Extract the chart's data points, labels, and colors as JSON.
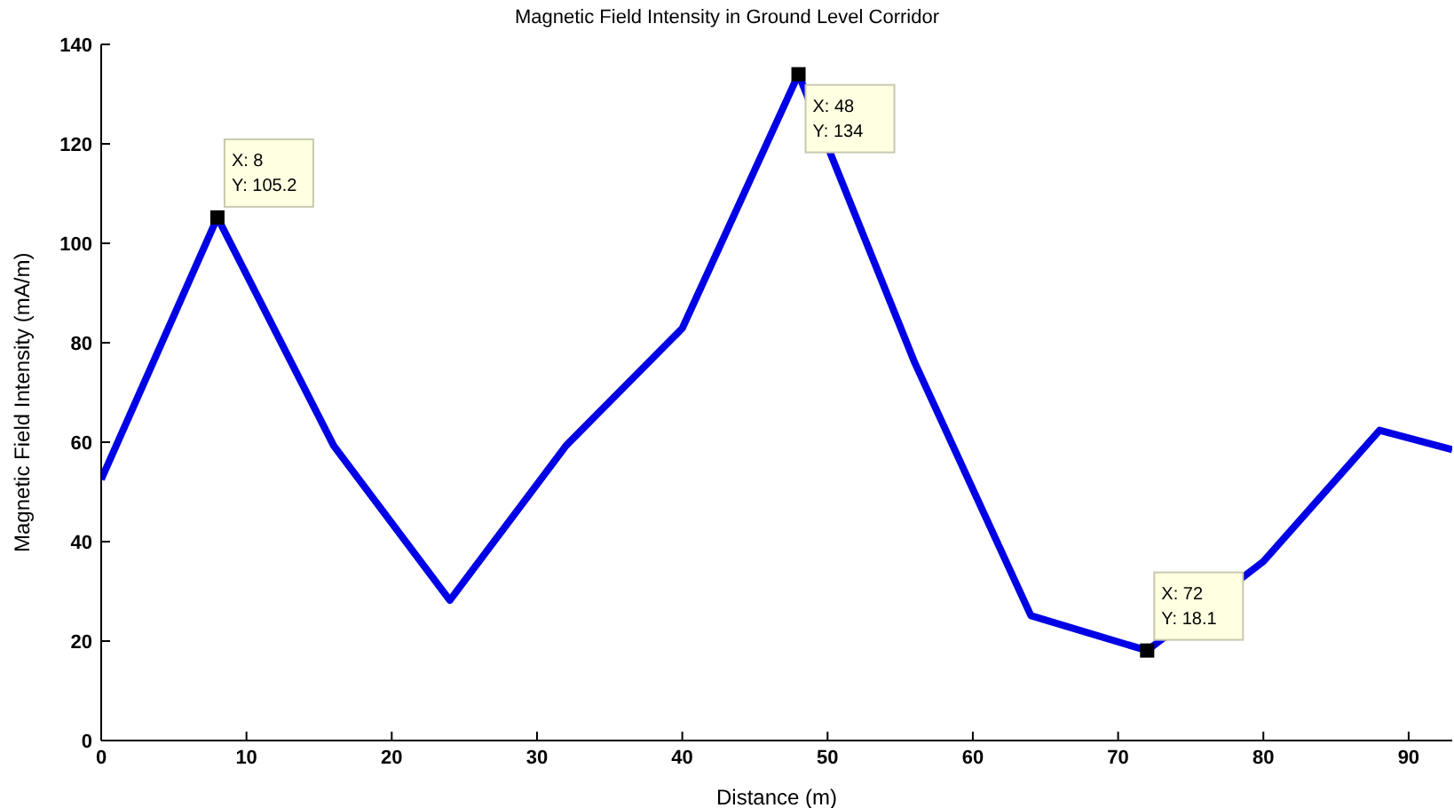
{
  "chart_data": {
    "type": "line",
    "title": "Magnetic Field Intensity in Ground Level Corridor",
    "xlabel": "Distance (m)",
    "ylabel": "Magnetic Field Intensity (mA/m)",
    "series": [
      {
        "color": "#0000e6",
        "x": [
          0,
          8,
          16,
          24,
          32,
          40,
          48,
          56,
          64,
          72,
          80,
          88,
          93
        ],
        "values": [
          52.5,
          105.2,
          59.3,
          28.2,
          59.3,
          82.9,
          134,
          76,
          25.1,
          18.1,
          36,
          62.4,
          58.5
        ]
      },
      {
        "type": "scatter",
        "color": "#000000",
        "marker": "square",
        "x": [
          8,
          48,
          72
        ],
        "values": [
          105.2,
          134,
          18.1
        ]
      }
    ],
    "annotations": [
      {
        "text": "X: 8\nY: 105.2",
        "x": 8,
        "y": 105.2
      },
      {
        "text": "X: 48\nY: 134",
        "x": 48,
        "y": 134
      },
      {
        "text": "X: 72\nY: 18.1",
        "x": 72,
        "y": 18.1
      }
    ],
    "xlim": [
      0,
      93
    ],
    "xticks": [
      0,
      10,
      20,
      30,
      40,
      50,
      60,
      70,
      80,
      90
    ],
    "ylim": [
      0,
      140
    ],
    "yticks": [
      0,
      20,
      40,
      60,
      80,
      100,
      120,
      140
    ],
    "grid": false,
    "legend": false,
    "marker": "none",
    "line_style": "solid"
  }
}
